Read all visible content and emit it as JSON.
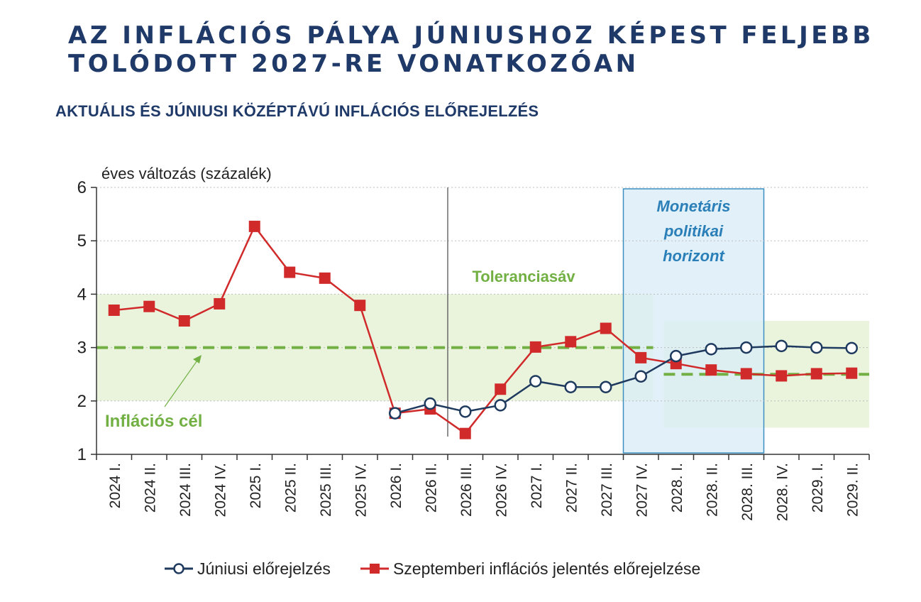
{
  "slide": {
    "title_line1": "AZ INFLÁCIÓS PÁLYA JÚNIUSHOZ KÉPEST FELJEBB",
    "title_line2": "TOLÓDOTT 2027-RE VONATKOZÓAN"
  },
  "chart_data": {
    "type": "line",
    "subtitle": "AKTUÁLIS ÉS JÚNIUSI KÖZÉPTÁVÚ INFLÁCIÓS ELŐREJELZÉS",
    "ylabel": "éves változás (százalék)",
    "ylim": [
      1,
      6
    ],
    "yticks": [
      1,
      2,
      3,
      4,
      5,
      6
    ],
    "grid": "horizontal dotted",
    "categories": [
      "2024 I.",
      "2024 II.",
      "2024 III.",
      "2024 IV.",
      "2025 I.",
      "2025 II.",
      "2025 III.",
      "2025 IV.",
      "2026 I.",
      "2026 II.",
      "2026 III.",
      "2026 IV.",
      "2027 I.",
      "2027 II.",
      "2027 III.",
      "2027 IV.",
      "2028. I.",
      "2028. II.",
      "2028. III.",
      "2028. IV.",
      "2029. I.",
      "2029. II."
    ],
    "series": [
      {
        "name": "Júniusi előrejelzés",
        "color": "#1f3a5f",
        "marker": "circle-open",
        "values": [
          null,
          null,
          null,
          null,
          null,
          null,
          null,
          null,
          1.77,
          1.95,
          1.8,
          1.92,
          2.37,
          2.26,
          2.26,
          2.46,
          2.84,
          2.97,
          3.0,
          3.03,
          3.0,
          2.99
        ]
      },
      {
        "name": "Szeptemberi inflációs jelentés előrejelzése",
        "color": "#d02a2a",
        "marker": "square",
        "values": [
          3.7,
          3.77,
          3.5,
          3.82,
          5.27,
          4.41,
          4.3,
          3.79,
          1.77,
          1.85,
          1.39,
          2.22,
          3.01,
          3.11,
          3.36,
          2.81,
          2.7,
          2.58,
          2.51,
          2.47,
          2.51,
          2.52
        ]
      }
    ],
    "target_band": {
      "label": "Toleranciasáv",
      "color": "#eaf4dd",
      "segments": [
        {
          "from_category": "2024 I.",
          "to_category": "2027 IV.",
          "low": 2,
          "high": 4
        },
        {
          "from_category": "2028. I.",
          "to_category": "2029. II.",
          "low": 1.5,
          "high": 3.5
        }
      ]
    },
    "target_line": {
      "label": "Inflációs cél",
      "color": "#72b044",
      "segments": [
        {
          "from_category": "2024 I.",
          "to_category": "2027 IV.",
          "value": 3
        },
        {
          "from_category": "2028. I.",
          "to_category": "2029. II.",
          "value": 2.5
        }
      ]
    },
    "separator_after_category": "2026 II.",
    "policy_horizon": {
      "label_lines": [
        "Monetáris",
        "politikai",
        "horizont"
      ],
      "from_category": "2027 IV.",
      "to_category": "2028. III.",
      "fill": "#dbeef8",
      "border": "#3a8fc0",
      "text_color": "#2a7fb8"
    },
    "legend_position": "bottom"
  }
}
